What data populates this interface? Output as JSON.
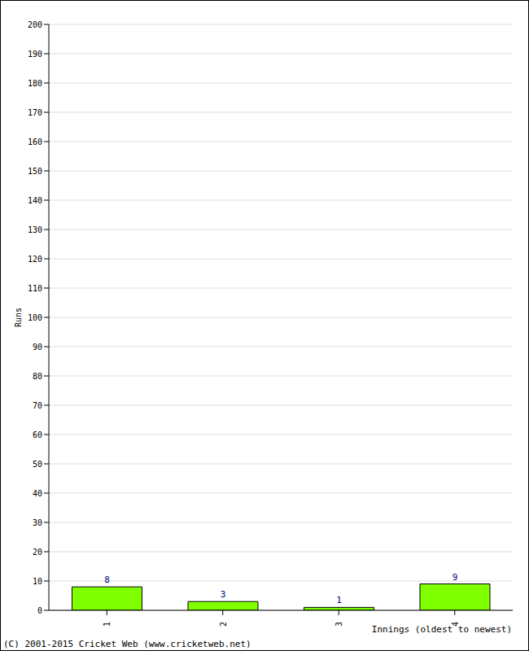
{
  "chart_data": {
    "type": "bar",
    "categories": [
      "1",
      "2",
      "3",
      "4"
    ],
    "values": [
      8,
      3,
      1,
      9
    ],
    "color": "#80ff00",
    "ylim": [
      0,
      200
    ],
    "yticks": [
      0,
      10,
      20,
      30,
      40,
      50,
      60,
      70,
      80,
      90,
      100,
      110,
      120,
      130,
      140,
      150,
      160,
      170,
      180,
      190,
      200
    ],
    "grid": true,
    "data_labels": true,
    "y_label": "Runs",
    "x_label": "Innings (oldest to newest)",
    "annotations": [
      "(C) 2001-2015 Cricket Web (www.cricketweb.net)"
    ]
  }
}
